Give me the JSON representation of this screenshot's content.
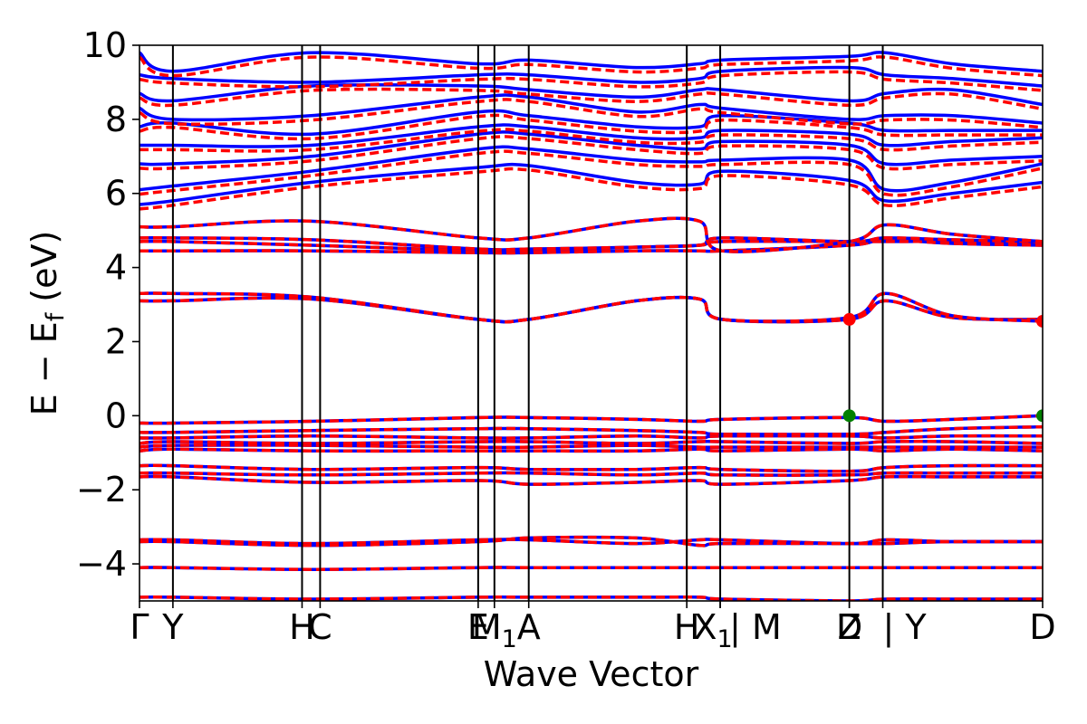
{
  "chart_data": {
    "type": "line",
    "title": "",
    "xlabel": "Wave Vector",
    "ylabel": "E − E_f (eV)",
    "ylabel_parts": {
      "main": "E − E",
      "sub": "f",
      "unit": "(eV)"
    },
    "ylim": [
      -5,
      10
    ],
    "y_ticks": [
      -4,
      -2,
      0,
      2,
      4,
      6,
      8,
      10
    ],
    "y_tick_labels": [
      "−4",
      "−2",
      "0",
      "2",
      "4",
      "6",
      "8",
      "10"
    ],
    "x_range": [
      0,
      1
    ],
    "high_symmetry_points": [
      {
        "label": "Γ",
        "x": 0.0
      },
      {
        "label": "Y",
        "x": 0.037
      },
      {
        "label": "H",
        "x": 0.18
      },
      {
        "label": "C",
        "x": 0.2
      },
      {
        "label": "E",
        "x": 0.375
      },
      {
        "label": "M",
        "sub": "1",
        "x": 0.393
      },
      {
        "label": "A",
        "x": 0.431
      },
      {
        "label": "H",
        "x": 0.606
      },
      {
        "label": "X",
        "sub": "1",
        "x": 0.643
      },
      {
        "label": "| M",
        "x": 0.643
      },
      {
        "label": "D",
        "x": 0.786
      },
      {
        "label": "Z",
        "x": 0.786
      },
      {
        "label": "| Y",
        "x": 0.823
      },
      {
        "label": "D",
        "x": 1.0
      }
    ],
    "segment_breaks": [
      0.643,
      0.823
    ],
    "grid": false,
    "legend": "none",
    "series": [
      {
        "style": "solid",
        "color": "#0000ff"
      },
      {
        "style": "dashed",
        "color": "#ff0000"
      }
    ],
    "colors": {
      "blue": "#0000ff",
      "red": "#ff0000",
      "green": "#008000",
      "axis": "#000000"
    },
    "bands": {
      "core": [
        {
          "y": [
            -4.1,
            -4.1,
            -4.15,
            -4.1,
            -4.1,
            -4.1,
            -4.1,
            -4.1,
            -4.1,
            -4.1,
            -4.1,
            -4.1
          ]
        },
        {
          "y": [
            -4.9,
            -4.9,
            -4.95,
            -4.9,
            -4.9,
            -4.9,
            -4.9,
            -4.95,
            -5.0,
            -4.95,
            -4.95,
            -4.95
          ]
        },
        {
          "y": [
            -3.35,
            -3.35,
            -3.45,
            -3.35,
            -3.35,
            -3.45,
            -3.35,
            -3.35,
            -3.45,
            -3.35,
            -3.4,
            -3.4
          ]
        },
        {
          "y": [
            -3.4,
            -3.4,
            -3.5,
            -3.4,
            -3.3,
            -3.3,
            -3.5,
            -3.45,
            -3.45,
            -3.45,
            -3.4,
            -3.4
          ]
        }
      ],
      "valence": [
        {
          "y": [
            -1.65,
            -1.65,
            -1.8,
            -1.75,
            -1.85,
            -1.8,
            -1.75,
            -1.85,
            -1.75,
            -1.65,
            -1.65,
            -1.65
          ]
        },
        {
          "y": [
            -1.55,
            -1.55,
            -1.6,
            -1.55,
            -1.55,
            -1.6,
            -1.55,
            -1.6,
            -1.6,
            -1.55,
            -1.55,
            -1.55
          ]
        },
        {
          "y": [
            -1.35,
            -1.35,
            -1.45,
            -1.4,
            -1.45,
            -1.45,
            -1.4,
            -1.45,
            -1.5,
            -1.4,
            -1.35,
            -1.35
          ]
        },
        {
          "y": [
            -0.95,
            -0.9,
            -0.95,
            -0.95,
            -0.95,
            -0.95,
            -0.9,
            -0.95,
            -0.9,
            -0.95,
            -0.9,
            -0.95
          ]
        },
        {
          "y": [
            -0.85,
            -0.8,
            -0.8,
            -0.85,
            -0.85,
            -0.8,
            -0.85,
            -0.85,
            -0.85,
            -0.85,
            -0.85,
            -0.85
          ]
        },
        {
          "y": [
            -0.75,
            -0.7,
            -0.75,
            -0.7,
            -0.7,
            -0.75,
            -0.7,
            -0.7,
            -0.75,
            -0.7,
            -0.7,
            -0.75
          ]
        },
        {
          "y": [
            -0.6,
            -0.6,
            -0.55,
            -0.6,
            -0.6,
            -0.55,
            -0.6,
            -0.55,
            -0.55,
            -0.6,
            -0.55,
            -0.55
          ]
        },
        {
          "y": [
            -0.45,
            -0.45,
            -0.4,
            -0.35,
            -0.35,
            -0.4,
            -0.45,
            -0.5,
            -0.5,
            -0.45,
            -0.35,
            -0.3
          ]
        },
        {
          "y": [
            -0.2,
            -0.2,
            -0.15,
            -0.05,
            -0.05,
            -0.1,
            -0.15,
            -0.1,
            -0.05,
            -0.15,
            -0.1,
            0.0
          ]
        }
      ],
      "conduction_low": [
        {
          "y": [
            3.1,
            3.1,
            3.15,
            2.6,
            2.6,
            3.1,
            3.15,
            2.6,
            2.6,
            3.1,
            2.65,
            2.6
          ]
        },
        {
          "y": [
            3.3,
            3.3,
            3.2,
            2.6,
            2.6,
            3.1,
            3.15,
            2.6,
            2.65,
            3.3,
            2.7,
            2.55
          ]
        },
        {
          "y": [
            4.45,
            4.45,
            4.45,
            4.4,
            4.4,
            4.45,
            4.45,
            4.45,
            4.6,
            4.75,
            4.65,
            4.6
          ]
        },
        {
          "y": [
            4.7,
            4.7,
            4.6,
            4.45,
            4.45,
            4.55,
            4.6,
            4.7,
            4.7,
            4.7,
            4.7,
            4.65
          ]
        },
        {
          "y": [
            4.8,
            4.8,
            4.75,
            4.5,
            4.5,
            4.55,
            4.6,
            4.8,
            4.7,
            4.8,
            4.75,
            4.7
          ]
        },
        {
          "y": [
            5.1,
            5.1,
            5.25,
            4.8,
            4.8,
            5.25,
            5.25,
            4.45,
            4.7,
            5.15,
            4.9,
            4.7
          ]
        }
      ],
      "conduction_high": [
        {
          "y": [
            5.7,
            5.8,
            6.3,
            6.7,
            6.75,
            6.3,
            6.25,
            6.6,
            6.35,
            5.8,
            6.0,
            6.3
          ]
        },
        {
          "y": [
            6.1,
            6.2,
            6.6,
            7.2,
            7.2,
            6.9,
            6.85,
            6.9,
            6.9,
            6.1,
            6.3,
            6.8
          ]
        },
        {
          "y": [
            6.8,
            6.8,
            7.0,
            7.6,
            7.6,
            7.3,
            7.2,
            7.4,
            7.3,
            6.8,
            6.9,
            7.0
          ]
        },
        {
          "y": [
            7.3,
            7.3,
            7.3,
            7.8,
            7.8,
            7.5,
            7.5,
            7.7,
            7.6,
            7.3,
            7.4,
            7.5
          ]
        },
        {
          "y": [
            7.8,
            7.9,
            7.6,
            8.2,
            8.1,
            7.8,
            7.8,
            8.1,
            7.9,
            7.7,
            7.7,
            7.7
          ]
        },
        {
          "y": [
            8.3,
            8.0,
            8.1,
            8.6,
            8.6,
            8.2,
            8.4,
            8.3,
            8.0,
            8.1,
            8.1,
            7.9
          ]
        },
        {
          "y": [
            8.7,
            8.5,
            8.9,
            8.9,
            8.8,
            8.6,
            8.8,
            8.8,
            8.5,
            8.7,
            8.8,
            8.4
          ]
        },
        {
          "y": [
            9.2,
            9.1,
            9.0,
            9.2,
            9.2,
            9.0,
            9.1,
            9.3,
            9.4,
            9.2,
            9.1,
            8.9
          ]
        },
        {
          "y": [
            9.8,
            9.3,
            9.8,
            9.5,
            9.6,
            9.4,
            9.5,
            9.6,
            9.7,
            9.8,
            9.5,
            9.3
          ]
        }
      ]
    },
    "band_x_nodes": [
      0.0,
      0.037,
      0.19,
      0.375,
      0.431,
      0.55,
      0.62,
      0.645,
      0.786,
      0.826,
      0.9,
      1.0
    ],
    "markers": [
      {
        "x": 0.786,
        "y": 2.6,
        "color": "#ff0000"
      },
      {
        "x": 1.0,
        "y": 2.55,
        "color": "#ff0000"
      },
      {
        "x": 0.786,
        "y": 0.0,
        "color": "#008000"
      },
      {
        "x": 1.0,
        "y": 0.0,
        "color": "#008000"
      }
    ]
  }
}
